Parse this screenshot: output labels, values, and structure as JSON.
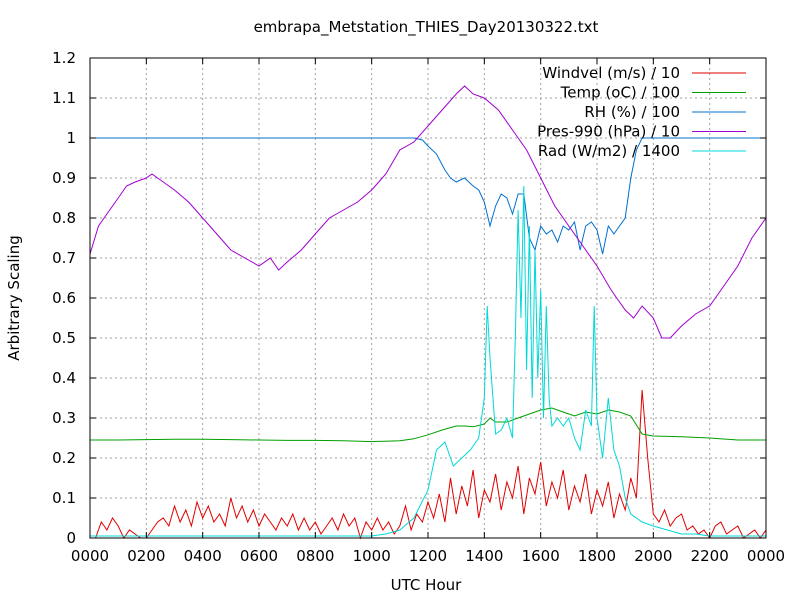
{
  "chart_data": {
    "type": "line",
    "title": "embrapa_Metstation_THIES_Day20130322.txt",
    "xlabel": "UTC Hour",
    "ylabel": "Arbitrary Scaling",
    "xlim": [
      0,
      24
    ],
    "ylim": [
      0,
      1.2
    ],
    "grid": true,
    "legend_position": "top-right",
    "x_tick_values": [
      0,
      2,
      4,
      6,
      8,
      10,
      12,
      14,
      16,
      18,
      20,
      22,
      24
    ],
    "x_tick_labels": [
      "0000",
      "0200",
      "0400",
      "0600",
      "0800",
      "1000",
      "1200",
      "1400",
      "1600",
      "1800",
      "2000",
      "2200",
      "0000"
    ],
    "y_ticks": [
      0,
      0.1,
      0.2,
      0.3,
      0.4,
      0.5,
      0.6,
      0.7,
      0.8,
      0.9,
      1,
      1.1,
      1.2
    ],
    "y_tick_labels": [
      "0",
      "0.1",
      "0.2",
      "0.3",
      "0.4",
      "0.5",
      "0.6",
      "0.7",
      "0.8",
      "0.9",
      "1",
      "1.1",
      "1.2"
    ],
    "series": [
      {
        "name": "Windvel (m/s) / 10",
        "color": "#e00000",
        "x": [
          0.0,
          0.2,
          0.4,
          0.6,
          0.8,
          1.0,
          1.2,
          1.4,
          1.6,
          1.8,
          2.0,
          2.2,
          2.4,
          2.6,
          2.8,
          3.0,
          3.2,
          3.4,
          3.6,
          3.8,
          4.0,
          4.2,
          4.4,
          4.6,
          4.8,
          5.0,
          5.2,
          5.4,
          5.6,
          5.8,
          6.0,
          6.2,
          6.4,
          6.6,
          6.8,
          7.0,
          7.2,
          7.4,
          7.6,
          7.8,
          8.0,
          8.2,
          8.4,
          8.6,
          8.8,
          9.0,
          9.2,
          9.4,
          9.6,
          9.8,
          10.0,
          10.2,
          10.4,
          10.6,
          10.8,
          11.0,
          11.2,
          11.4,
          11.6,
          11.8,
          12.0,
          12.2,
          12.4,
          12.6,
          12.8,
          13.0,
          13.2,
          13.4,
          13.6,
          13.8,
          14.0,
          14.2,
          14.4,
          14.6,
          14.8,
          15.0,
          15.2,
          15.4,
          15.6,
          15.8,
          16.0,
          16.2,
          16.4,
          16.6,
          16.8,
          17.0,
          17.2,
          17.4,
          17.6,
          17.8,
          18.0,
          18.2,
          18.4,
          18.6,
          18.8,
          19.0,
          19.2,
          19.4,
          19.6,
          19.8,
          20.0,
          20.2,
          20.4,
          20.6,
          20.8,
          21.0,
          21.2,
          21.4,
          21.6,
          21.8,
          22.0,
          22.2,
          22.4,
          22.6,
          22.8,
          23.0,
          23.2,
          23.4,
          23.6,
          23.8,
          24.0
        ],
        "values": [
          0.0,
          0.0,
          0.04,
          0.02,
          0.05,
          0.03,
          0.0,
          0.02,
          0.01,
          0.0,
          0.0,
          0.02,
          0.04,
          0.05,
          0.03,
          0.08,
          0.04,
          0.07,
          0.03,
          0.09,
          0.05,
          0.08,
          0.04,
          0.06,
          0.03,
          0.1,
          0.05,
          0.08,
          0.04,
          0.07,
          0.03,
          0.06,
          0.04,
          0.02,
          0.05,
          0.03,
          0.06,
          0.02,
          0.05,
          0.02,
          0.04,
          0.01,
          0.03,
          0.05,
          0.02,
          0.06,
          0.03,
          0.05,
          0.0,
          0.04,
          0.02,
          0.05,
          0.02,
          0.04,
          0.01,
          0.03,
          0.08,
          0.02,
          0.06,
          0.04,
          0.09,
          0.05,
          0.11,
          0.04,
          0.15,
          0.06,
          0.13,
          0.08,
          0.17,
          0.05,
          0.12,
          0.09,
          0.16,
          0.07,
          0.14,
          0.1,
          0.18,
          0.06,
          0.15,
          0.11,
          0.19,
          0.08,
          0.14,
          0.1,
          0.17,
          0.07,
          0.13,
          0.09,
          0.16,
          0.06,
          0.12,
          0.08,
          0.14,
          0.05,
          0.11,
          0.07,
          0.15,
          0.1,
          0.37,
          0.2,
          0.06,
          0.04,
          0.07,
          0.03,
          0.05,
          0.06,
          0.02,
          0.03,
          0.01,
          0.02,
          0.0,
          0.03,
          0.04,
          0.01,
          0.02,
          0.03,
          0.0,
          0.01,
          0.02,
          0.0,
          0.02
        ]
      },
      {
        "name": "Temp (oC) / 100",
        "color": "#00a000",
        "x": [
          0.0,
          1.0,
          2.0,
          3.0,
          4.0,
          5.0,
          6.0,
          7.0,
          8.0,
          9.0,
          10.0,
          11.0,
          11.5,
          12.0,
          12.5,
          13.0,
          13.3,
          13.6,
          14.0,
          14.2,
          14.4,
          14.8,
          15.2,
          15.6,
          16.0,
          16.4,
          16.8,
          17.2,
          17.6,
          18.0,
          18.4,
          18.8,
          19.2,
          19.6,
          20.0,
          21.0,
          22.0,
          23.0,
          24.0
        ],
        "values": [
          0.245,
          0.245,
          0.246,
          0.247,
          0.247,
          0.246,
          0.245,
          0.244,
          0.244,
          0.243,
          0.241,
          0.243,
          0.248,
          0.258,
          0.27,
          0.28,
          0.28,
          0.278,
          0.285,
          0.3,
          0.29,
          0.29,
          0.3,
          0.31,
          0.32,
          0.325,
          0.315,
          0.305,
          0.315,
          0.31,
          0.32,
          0.315,
          0.305,
          0.26,
          0.255,
          0.253,
          0.25,
          0.245,
          0.245
        ]
      },
      {
        "name": "RH (%) / 100",
        "color": "#0070d0",
        "x": [
          0.0,
          2.0,
          4.0,
          6.0,
          8.0,
          10.0,
          11.0,
          11.5,
          11.8,
          12.0,
          12.3,
          12.6,
          12.8,
          13.0,
          13.3,
          13.6,
          13.8,
          14.0,
          14.2,
          14.4,
          14.6,
          14.8,
          15.0,
          15.2,
          15.4,
          15.6,
          15.8,
          16.0,
          16.2,
          16.4,
          16.6,
          16.8,
          17.0,
          17.2,
          17.4,
          17.6,
          17.8,
          18.0,
          18.2,
          18.4,
          18.6,
          18.8,
          19.0,
          19.2,
          19.4,
          19.6,
          20.0,
          22.0,
          24.0
        ],
        "values": [
          1.0,
          1.0,
          1.0,
          1.0,
          1.0,
          1.0,
          1.0,
          1.0,
          0.995,
          0.98,
          0.96,
          0.92,
          0.9,
          0.89,
          0.9,
          0.88,
          0.87,
          0.84,
          0.78,
          0.83,
          0.86,
          0.85,
          0.81,
          0.86,
          0.86,
          0.75,
          0.72,
          0.78,
          0.76,
          0.77,
          0.74,
          0.78,
          0.77,
          0.79,
          0.72,
          0.78,
          0.79,
          0.77,
          0.71,
          0.78,
          0.76,
          0.78,
          0.8,
          0.9,
          0.97,
          1.0,
          1.0,
          1.0,
          1.0
        ]
      },
      {
        "name": "Pres-990 (hPa) / 10",
        "color": "#a000d0",
        "x": [
          0.0,
          0.3,
          0.6,
          1.0,
          1.3,
          1.6,
          2.0,
          2.2,
          2.4,
          3.0,
          3.5,
          4.0,
          4.5,
          5.0,
          5.5,
          6.0,
          6.4,
          6.7,
          7.0,
          7.5,
          8.0,
          8.5,
          9.0,
          9.5,
          10.0,
          10.5,
          11.0,
          11.5,
          12.0,
          12.5,
          13.0,
          13.3,
          13.6,
          14.0,
          14.5,
          15.0,
          15.5,
          16.0,
          16.5,
          17.0,
          17.5,
          18.0,
          18.5,
          19.0,
          19.3,
          19.6,
          20.0,
          20.3,
          20.6,
          21.0,
          21.5,
          22.0,
          22.5,
          23.0,
          23.5,
          24.0
        ],
        "values": [
          0.71,
          0.78,
          0.81,
          0.85,
          0.88,
          0.89,
          0.9,
          0.91,
          0.9,
          0.87,
          0.84,
          0.8,
          0.76,
          0.72,
          0.7,
          0.68,
          0.7,
          0.67,
          0.69,
          0.72,
          0.76,
          0.8,
          0.82,
          0.84,
          0.87,
          0.91,
          0.97,
          0.99,
          1.03,
          1.07,
          1.11,
          1.13,
          1.11,
          1.1,
          1.07,
          1.02,
          0.97,
          0.9,
          0.83,
          0.78,
          0.73,
          0.68,
          0.62,
          0.57,
          0.55,
          0.58,
          0.55,
          0.5,
          0.5,
          0.53,
          0.56,
          0.58,
          0.63,
          0.68,
          0.75,
          0.8
        ]
      },
      {
        "name": "Rad (W/m2) / 1400",
        "color": "#00d8d8",
        "x": [
          0.0,
          10.0,
          10.5,
          11.0,
          11.5,
          12.0,
          12.3,
          12.6,
          12.9,
          13.2,
          13.5,
          13.8,
          14.0,
          14.1,
          14.2,
          14.4,
          14.6,
          14.8,
          15.0,
          15.1,
          15.2,
          15.3,
          15.4,
          15.5,
          15.6,
          15.7,
          15.8,
          15.9,
          16.0,
          16.1,
          16.2,
          16.3,
          16.4,
          16.6,
          16.8,
          17.0,
          17.2,
          17.4,
          17.6,
          17.8,
          17.9,
          18.0,
          18.2,
          18.4,
          18.6,
          18.8,
          19.0,
          19.2,
          19.4,
          19.6,
          20.0,
          20.5,
          21.0,
          21.5,
          22.0,
          23.0,
          24.0
        ],
        "values": [
          0.005,
          0.005,
          0.01,
          0.02,
          0.05,
          0.12,
          0.22,
          0.24,
          0.18,
          0.2,
          0.22,
          0.25,
          0.35,
          0.58,
          0.45,
          0.26,
          0.27,
          0.3,
          0.25,
          0.5,
          0.82,
          0.55,
          0.88,
          0.42,
          0.78,
          0.35,
          0.72,
          0.4,
          0.62,
          0.3,
          0.58,
          0.35,
          0.28,
          0.3,
          0.28,
          0.3,
          0.25,
          0.22,
          0.32,
          0.28,
          0.58,
          0.3,
          0.2,
          0.35,
          0.22,
          0.18,
          0.1,
          0.06,
          0.05,
          0.04,
          0.03,
          0.02,
          0.01,
          0.01,
          0.005,
          0.005,
          0.005
        ]
      }
    ]
  }
}
